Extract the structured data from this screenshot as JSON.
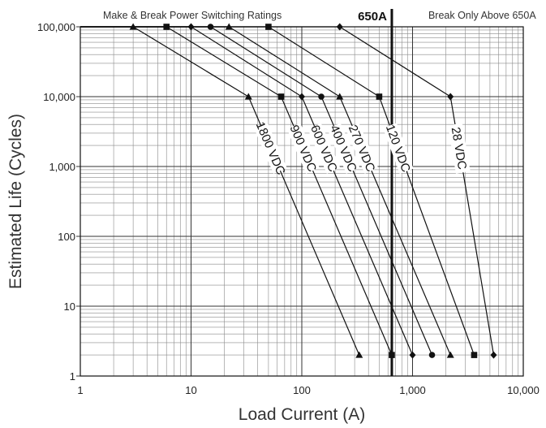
{
  "chart_data": {
    "type": "line",
    "title": "Make & Break Power Switching Ratings",
    "xlabel": "Load Current (A)",
    "ylabel": "Estimated Life (Cycles)",
    "x_scale": "log",
    "y_scale": "log",
    "xlim": [
      1,
      10000
    ],
    "ylim": [
      1,
      100000
    ],
    "grid": true,
    "x_ticks": [
      {
        "value": 1,
        "label": "1"
      },
      {
        "value": 10,
        "label": "10"
      },
      {
        "value": 100,
        "label": "100"
      },
      {
        "value": 1000,
        "label": "1,000"
      },
      {
        "value": 10000,
        "label": "10,000"
      }
    ],
    "y_ticks": [
      {
        "value": 1,
        "label": "1"
      },
      {
        "value": 10,
        "label": "10"
      },
      {
        "value": 100,
        "label": "100"
      },
      {
        "value": 1000,
        "label": "1,000"
      },
      {
        "value": 10000,
        "label": "10,000"
      },
      {
        "value": 100000,
        "label": "100,000"
      }
    ],
    "threshold": {
      "x": 650,
      "label": "650A",
      "note": "Break Only Above 650A"
    },
    "series": [
      {
        "name": "1800 VDC",
        "marker": "triangle",
        "points": [
          [
            1,
            100000
          ],
          [
            3,
            100000
          ],
          [
            33,
            10000
          ],
          [
            330,
            2
          ]
        ]
      },
      {
        "name": "900 VDC",
        "marker": "square",
        "points": [
          [
            1,
            100000
          ],
          [
            6,
            100000
          ],
          [
            65,
            10000
          ],
          [
            650,
            2
          ]
        ]
      },
      {
        "name": "600 VDC",
        "marker": "diamond",
        "points": [
          [
            1,
            100000
          ],
          [
            10,
            100000
          ],
          [
            100,
            10000
          ],
          [
            1000,
            2
          ]
        ]
      },
      {
        "name": "400 VDC",
        "marker": "circle",
        "points": [
          [
            1,
            100000
          ],
          [
            15,
            100000
          ],
          [
            150,
            10000
          ],
          [
            1500,
            2
          ]
        ]
      },
      {
        "name": "270 VDC",
        "marker": "triangle",
        "points": [
          [
            1,
            100000
          ],
          [
            22,
            100000
          ],
          [
            220,
            10000
          ],
          [
            2200,
            2
          ]
        ]
      },
      {
        "name": "120 VDC",
        "marker": "square",
        "points": [
          [
            1,
            100000
          ],
          [
            50,
            100000
          ],
          [
            500,
            10000
          ],
          [
            3600,
            2
          ]
        ]
      },
      {
        "name": "28 VDC",
        "marker": "diamond",
        "points": [
          [
            1,
            100000
          ],
          [
            220,
            100000
          ],
          [
            2200,
            10000
          ],
          [
            5400,
            2
          ]
        ]
      }
    ]
  }
}
